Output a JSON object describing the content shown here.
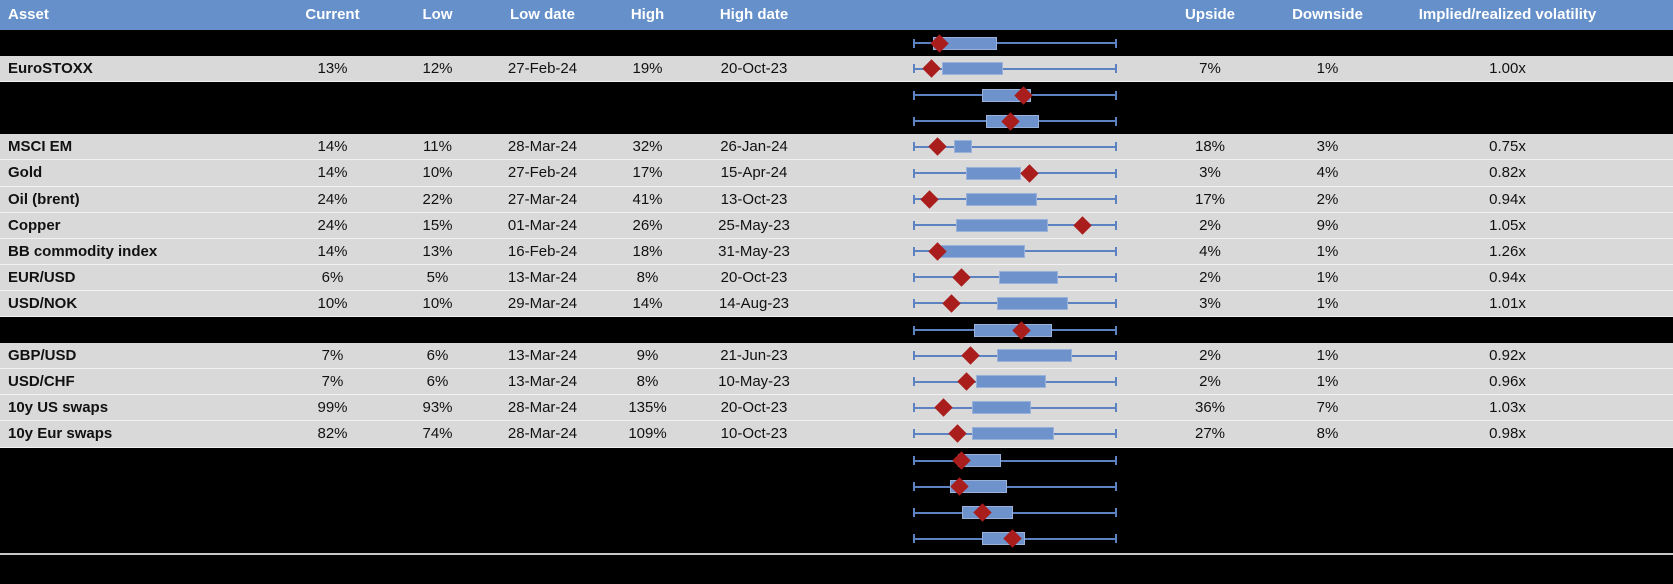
{
  "colors": {
    "header_bg": "#6590CA",
    "row_bg": "#D9D9D9",
    "hidden_bg": "#000000",
    "box_fill": "#6D92CC",
    "box_border": "#9AB2DA",
    "whisker": "#5D82C1",
    "marker": "#A91D1D",
    "header_text": "#FFFFFF"
  },
  "table": {
    "columns": [
      {
        "key": "asset",
        "label": "Asset"
      },
      {
        "key": "current",
        "label": "Current"
      },
      {
        "key": "low",
        "label": "Low"
      },
      {
        "key": "low_date",
        "label": "Low date"
      },
      {
        "key": "high",
        "label": "High"
      },
      {
        "key": "high_date",
        "label": "High date"
      },
      {
        "key": "chart",
        "label": ""
      },
      {
        "key": "upside",
        "label": "Upside"
      },
      {
        "key": "downside",
        "label": "Downside"
      },
      {
        "key": "implied",
        "label": "Implied/realized volatility"
      }
    ],
    "rows": [
      {
        "type": "hidden",
        "plot": {
          "box": [
            0.1,
            0.41
          ],
          "marker": 0.13
        }
      },
      {
        "type": "data",
        "asset": "EuroSTOXX",
        "current": "13%",
        "low": "12%",
        "low_date": "27-Feb-24",
        "high": "19%",
        "high_date": "20-Oct-23",
        "upside": "7%",
        "downside": "1%",
        "implied": "1.00x",
        "plot": {
          "box": [
            0.14,
            0.44
          ],
          "marker": 0.09
        }
      },
      {
        "type": "hidden",
        "plot": {
          "box": [
            0.34,
            0.58
          ],
          "marker": 0.54
        }
      },
      {
        "type": "hidden",
        "plot": {
          "box": [
            0.36,
            0.62
          ],
          "marker": 0.48
        }
      },
      {
        "type": "data",
        "asset": "MSCI EM",
        "current": "14%",
        "low": "11%",
        "low_date": "28-Mar-24",
        "high": "32%",
        "high_date": "26-Jan-24",
        "upside": "18%",
        "downside": "3%",
        "implied": "0.75x",
        "plot": {
          "box": [
            0.2,
            0.29
          ],
          "marker": 0.12
        }
      },
      {
        "type": "data",
        "asset": "Gold",
        "current": "14%",
        "low": "10%",
        "low_date": "27-Feb-24",
        "high": "17%",
        "high_date": "15-Apr-24",
        "upside": "3%",
        "downside": "4%",
        "implied": "0.82x",
        "plot": {
          "box": [
            0.26,
            0.53
          ],
          "marker": 0.57
        }
      },
      {
        "type": "data",
        "asset": "Oil (brent)",
        "current": "24%",
        "low": "22%",
        "low_date": "27-Mar-24",
        "high": "41%",
        "high_date": "13-Oct-23",
        "upside": "17%",
        "downside": "2%",
        "implied": "0.94x",
        "plot": {
          "box": [
            0.26,
            0.61
          ],
          "marker": 0.08
        }
      },
      {
        "type": "data",
        "asset": "Copper",
        "current": "24%",
        "low": "15%",
        "low_date": "01-Mar-24",
        "high": "26%",
        "high_date": "25-May-23",
        "upside": "2%",
        "downside": "9%",
        "implied": "1.05x",
        "plot": {
          "box": [
            0.21,
            0.66
          ],
          "marker": 0.83
        }
      },
      {
        "type": "data",
        "asset": "BB commodity index",
        "current": "14%",
        "low": "13%",
        "low_date": "16-Feb-24",
        "high": "18%",
        "high_date": "31-May-23",
        "upside": "4%",
        "downside": "1%",
        "implied": "1.26x",
        "plot": {
          "box": [
            0.12,
            0.55
          ],
          "marker": 0.12
        }
      },
      {
        "type": "data",
        "asset": "EUR/USD",
        "current": "6%",
        "low": "5%",
        "low_date": "13-Mar-24",
        "high": "8%",
        "high_date": "20-Oct-23",
        "upside": "2%",
        "downside": "1%",
        "implied": "0.94x",
        "plot": {
          "box": [
            0.42,
            0.71
          ],
          "marker": 0.24
        }
      },
      {
        "type": "data",
        "asset": "USD/NOK",
        "current": "10%",
        "low": "10%",
        "low_date": "29-Mar-24",
        "high": "14%",
        "high_date": "14-Aug-23",
        "upside": "3%",
        "downside": "1%",
        "implied": "1.01x",
        "plot": {
          "box": [
            0.41,
            0.76
          ],
          "marker": 0.19
        }
      },
      {
        "type": "hidden",
        "plot": {
          "box": [
            0.3,
            0.68
          ],
          "marker": 0.53
        }
      },
      {
        "type": "data",
        "asset": "GBP/USD",
        "current": "7%",
        "low": "6%",
        "low_date": "13-Mar-24",
        "high": "9%",
        "high_date": "21-Jun-23",
        "upside": "2%",
        "downside": "1%",
        "implied": "0.92x",
        "plot": {
          "box": [
            0.41,
            0.78
          ],
          "marker": 0.28
        }
      },
      {
        "type": "data",
        "asset": "USD/CHF",
        "current": "7%",
        "low": "6%",
        "low_date": "13-Mar-24",
        "high": "8%",
        "high_date": "10-May-23",
        "upside": "2%",
        "downside": "1%",
        "implied": "0.96x",
        "plot": {
          "box": [
            0.31,
            0.65
          ],
          "marker": 0.26
        }
      },
      {
        "type": "data",
        "asset": "10y US swaps",
        "current": "99%",
        "low": "93%",
        "low_date": "28-Mar-24",
        "high": "135%",
        "high_date": "20-Oct-23",
        "upside": "36%",
        "downside": "7%",
        "implied": "1.03x",
        "plot": {
          "box": [
            0.29,
            0.58
          ],
          "marker": 0.15
        }
      },
      {
        "type": "data",
        "asset": "10y Eur swaps",
        "current": "82%",
        "low": "74%",
        "low_date": "28-Mar-24",
        "high": "109%",
        "high_date": "10-Oct-23",
        "upside": "27%",
        "downside": "8%",
        "implied": "0.98x",
        "plot": {
          "box": [
            0.29,
            0.69
          ],
          "marker": 0.22
        }
      },
      {
        "type": "hidden",
        "plot": {
          "box": [
            0.22,
            0.43
          ],
          "marker": 0.24
        }
      },
      {
        "type": "hidden",
        "plot": {
          "box": [
            0.18,
            0.46
          ],
          "marker": 0.23
        }
      },
      {
        "type": "hidden",
        "plot": {
          "box": [
            0.24,
            0.49
          ],
          "marker": 0.34
        }
      },
      {
        "type": "hidden",
        "plot": {
          "box": [
            0.34,
            0.55
          ],
          "marker": 0.49
        }
      }
    ]
  }
}
